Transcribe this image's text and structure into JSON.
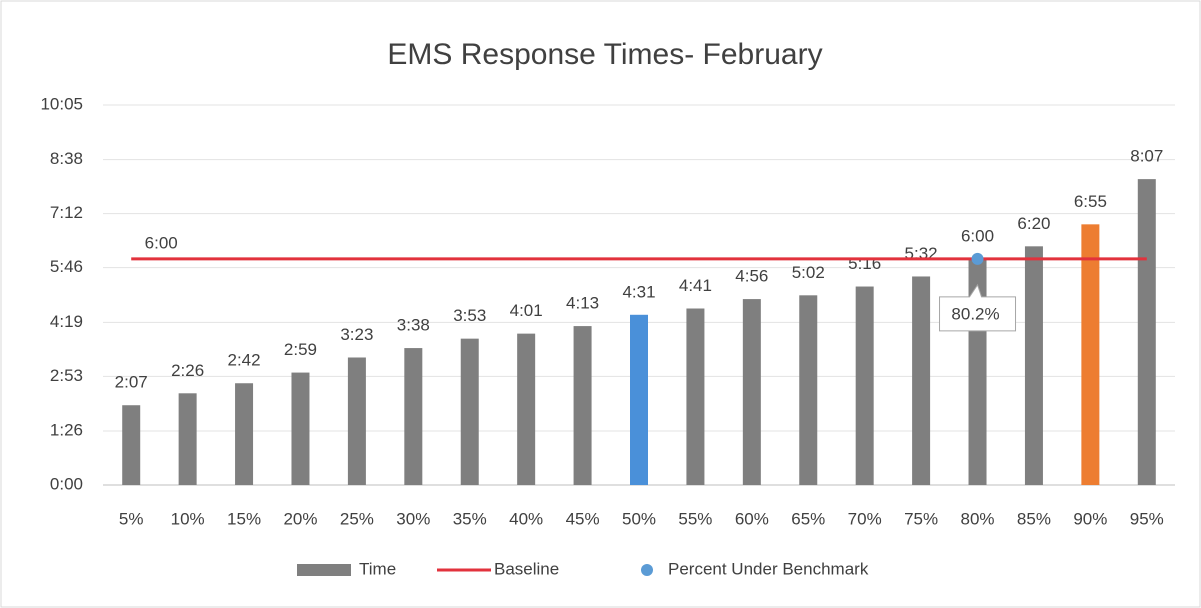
{
  "chart_data": {
    "type": "bar",
    "title": "EMS Response Times- February",
    "categories": [
      "5%",
      "10%",
      "15%",
      "20%",
      "25%",
      "30%",
      "35%",
      "40%",
      "45%",
      "50%",
      "55%",
      "60%",
      "65%",
      "70%",
      "75%",
      "80%",
      "85%",
      "90%",
      "95%"
    ],
    "ylim": [
      0,
      605
    ],
    "yticks": [
      {
        "value": 0,
        "label": "0:00"
      },
      {
        "value": 86,
        "label": "1:26"
      },
      {
        "value": 173,
        "label": "2:53"
      },
      {
        "value": 259,
        "label": "4:19"
      },
      {
        "value": 346,
        "label": "5:46"
      },
      {
        "value": 432,
        "label": "7:12"
      },
      {
        "value": 518,
        "label": "8:38"
      },
      {
        "value": 605,
        "label": "10:05"
      }
    ],
    "grid": true,
    "legend": "bottom",
    "series": [
      {
        "name": "Time",
        "color": "#7f7f7f",
        "colors": [
          "#7f7f7f",
          "#7f7f7f",
          "#7f7f7f",
          "#7f7f7f",
          "#7f7f7f",
          "#7f7f7f",
          "#7f7f7f",
          "#7f7f7f",
          "#7f7f7f",
          "#4a90d9",
          "#7f7f7f",
          "#7f7f7f",
          "#7f7f7f",
          "#7f7f7f",
          "#7f7f7f",
          "#7f7f7f",
          "#7f7f7f",
          "#ed7d31",
          "#7f7f7f"
        ],
        "values": [
          127,
          146,
          162,
          179,
          203,
          218,
          233,
          241,
          253,
          271,
          281,
          296,
          302,
          316,
          332,
          360,
          380,
          415,
          487
        ],
        "value_labels": [
          "2:07",
          "2:26",
          "2:42",
          "2:59",
          "3:23",
          "3:38",
          "3:53",
          "4:01",
          "4:13",
          "4:31",
          "4:41",
          "4:56",
          "5:02",
          "5:16",
          "5:32",
          "6:00",
          "6:20",
          "6:55",
          "8:07"
        ]
      },
      {
        "name": "Baseline",
        "type": "line",
        "color": "#e2323c",
        "values": [
          360,
          360,
          360,
          360,
          360,
          360,
          360,
          360,
          360,
          360,
          360,
          360,
          360,
          360,
          360,
          360,
          360,
          360,
          360
        ],
        "value_labels": [
          "6:00",
          null,
          null,
          null,
          null,
          null,
          null,
          null,
          null,
          null,
          null,
          null,
          null,
          null,
          null,
          null,
          null,
          null,
          null
        ]
      },
      {
        "name": "Percent Under Benchmark",
        "type": "scatter",
        "color": "#5b9bd5",
        "values": [
          null,
          null,
          null,
          null,
          null,
          null,
          null,
          null,
          null,
          null,
          null,
          null,
          null,
          null,
          null,
          360,
          null,
          null,
          null
        ],
        "callout": "80.2%"
      }
    ]
  }
}
